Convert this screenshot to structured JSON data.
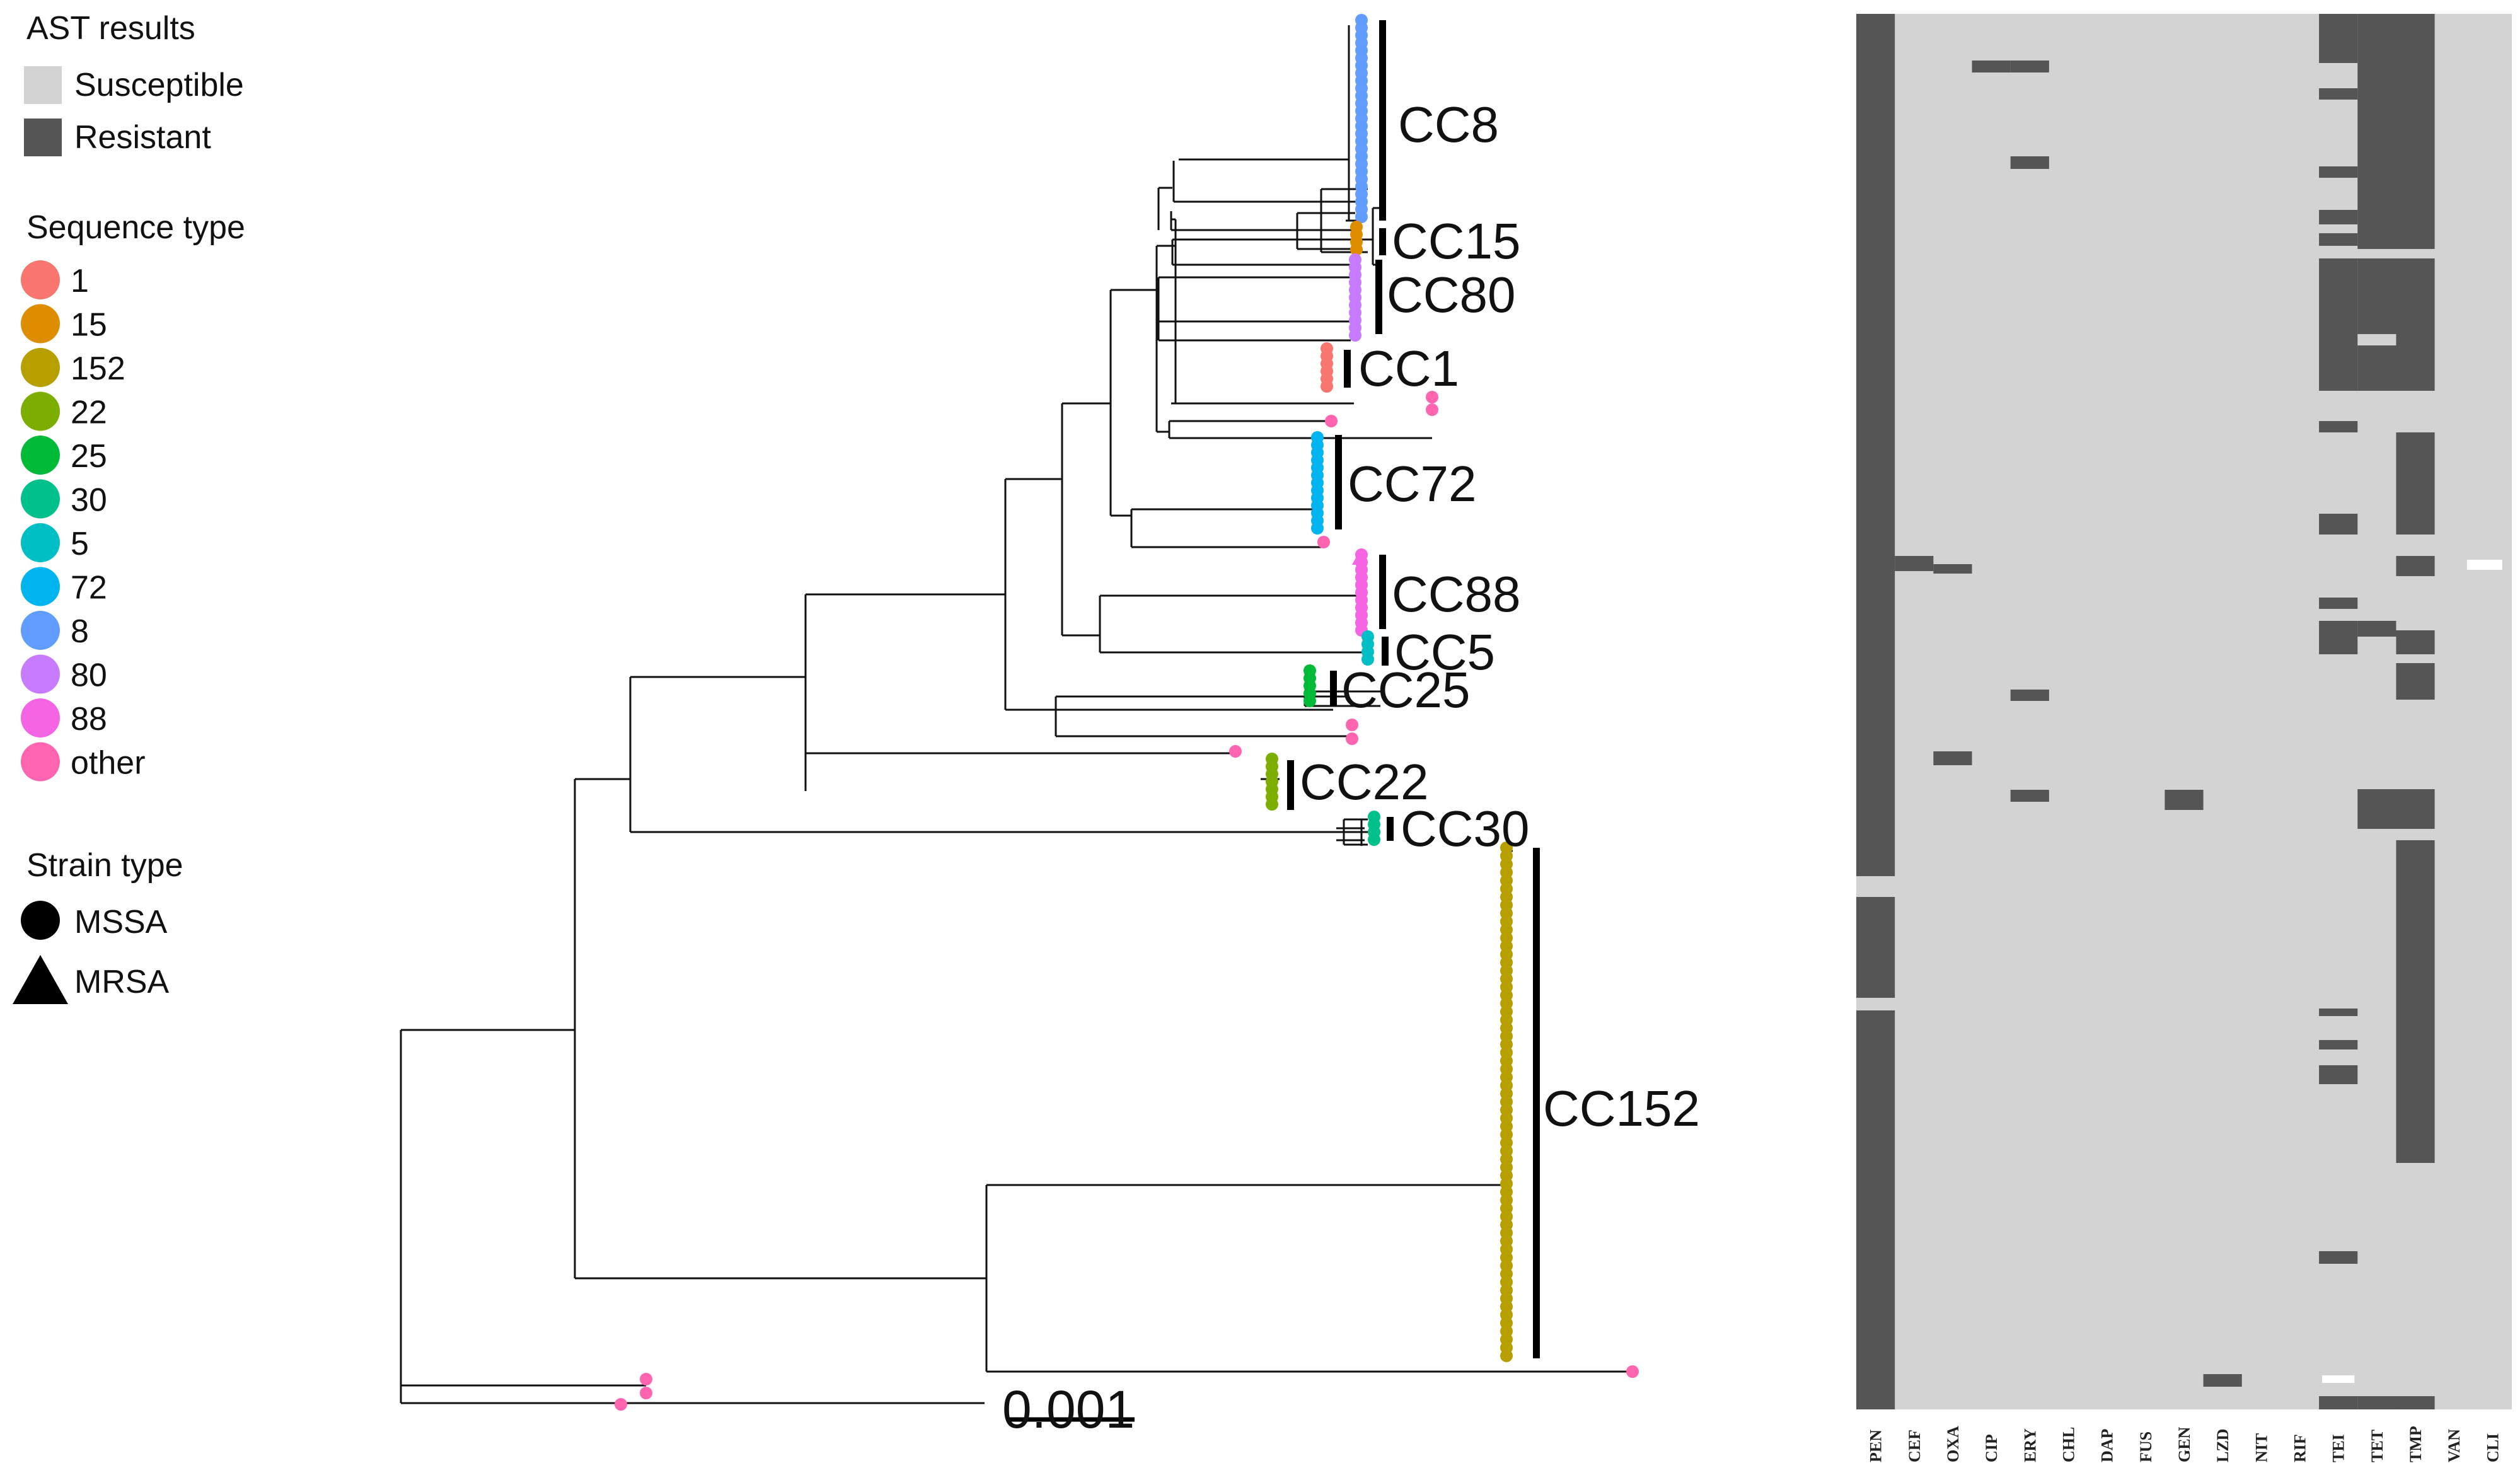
{
  "colors": {
    "susceptible": "#d3d3d3",
    "resistant": "#555555",
    "branch": "#111111",
    "bar": "#000000",
    "st": {
      "1": "#f8766d",
      "15": "#de8c00",
      "152": "#b79f00",
      "22": "#7cae00",
      "25": "#00ba38",
      "30": "#00c08b",
      "5": "#00bfc4",
      "72": "#00b4f0",
      "8": "#619cff",
      "80": "#c77cff",
      "88": "#f564e3",
      "other": "#ff64b0"
    }
  },
  "legend": {
    "ast": {
      "title": "AST results",
      "items": [
        {
          "label": "Susceptible",
          "key": "susceptible"
        },
        {
          "label": "Resistant",
          "key": "resistant"
        }
      ]
    },
    "st": {
      "title": "Sequence type",
      "items": [
        {
          "label": "1",
          "key": "1"
        },
        {
          "label": "15",
          "key": "15"
        },
        {
          "label": "152",
          "key": "152"
        },
        {
          "label": "22",
          "key": "22"
        },
        {
          "label": "25",
          "key": "25"
        },
        {
          "label": "30",
          "key": "30"
        },
        {
          "label": "5",
          "key": "5"
        },
        {
          "label": "72",
          "key": "72"
        },
        {
          "label": "8",
          "key": "8"
        },
        {
          "label": "80",
          "key": "80"
        },
        {
          "label": "88",
          "key": "88"
        },
        {
          "label": "other",
          "key": "other"
        }
      ]
    },
    "strain": {
      "title": "Strain type",
      "items": [
        {
          "label": "MSSA",
          "shape": "circle"
        },
        {
          "label": "MRSA",
          "shape": "triangle"
        }
      ]
    }
  },
  "tree": {
    "clades": [
      {
        "label": "CC8",
        "st": "8"
      },
      {
        "label": "CC15",
        "st": "15"
      },
      {
        "label": "CC80",
        "st": "80"
      },
      {
        "label": "CC1",
        "st": "1"
      },
      {
        "label": "CC72",
        "st": "72"
      },
      {
        "label": "CC88",
        "st": "88"
      },
      {
        "label": "CC5",
        "st": "5"
      },
      {
        "label": "CC25",
        "st": "25"
      },
      {
        "label": "CC22",
        "st": "22"
      },
      {
        "label": "CC30",
        "st": "30"
      },
      {
        "label": "CC152",
        "st": "152"
      }
    ],
    "scale_label": "0.001"
  },
  "heatmap": {
    "antibiotics": [
      "PEN",
      "CEF",
      "OXA",
      "CIP",
      "ERY",
      "CHL",
      "DAP",
      "FUS",
      "GEN",
      "LZD",
      "NIT",
      "RIF",
      "TEI",
      "TET",
      "TMP",
      "VAN",
      "CLI"
    ]
  }
}
